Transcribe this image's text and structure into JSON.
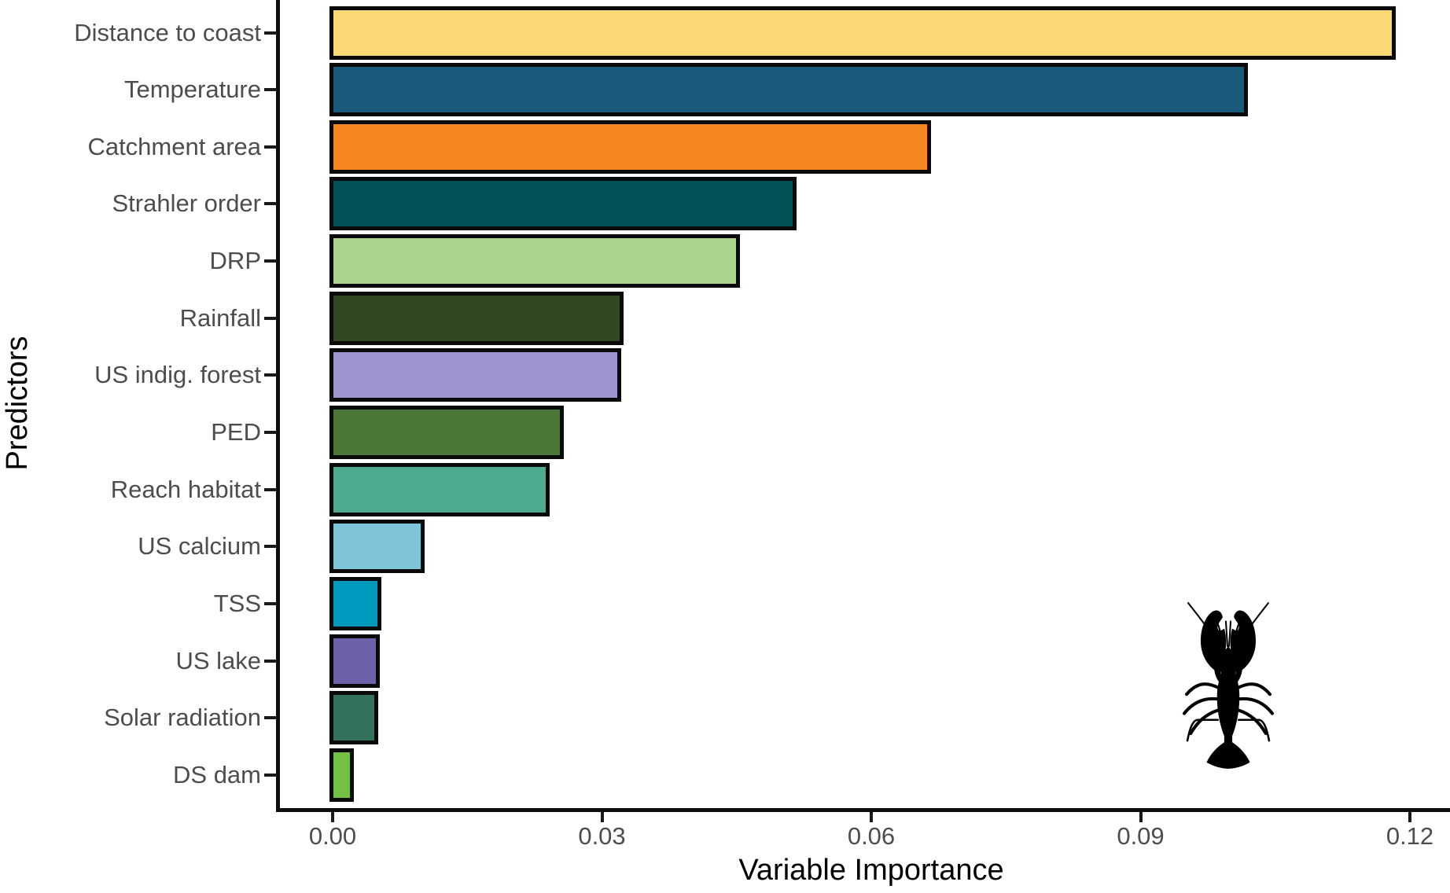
{
  "chart_data": {
    "type": "bar",
    "orientation": "horizontal",
    "title": "",
    "xlabel": "Variable Importance",
    "ylabel": "Predictors",
    "categories": [
      "Distance to coast",
      "Temperature",
      "Catchment area",
      "Strahler order",
      "DRP",
      "Rainfall",
      "US indig. forest",
      "PED",
      "Reach habitat",
      "US calcium",
      "TSS",
      "US lake",
      "Solar radiation",
      "DS dam"
    ],
    "values": [
      0.118,
      0.1015,
      0.0662,
      0.0512,
      0.0449,
      0.032,
      0.0317,
      0.0253,
      0.0237,
      0.0098,
      0.005,
      0.0048,
      0.0046,
      0.0019
    ],
    "bar_colors": [
      "#fad873",
      "#19597a",
      "#f68620",
      "#015157",
      "#abd48e",
      "#304823",
      "#9c95ce",
      "#4b7737",
      "#4daa90",
      "#7fc5d9",
      "#009abf",
      "#6b62aa",
      "#33715b",
      "#74c044"
    ],
    "bar_border_color": "#0a0a0a",
    "x_ticks": [
      0,
      0.03,
      0.06,
      0.09,
      0.12
    ],
    "x_tick_labels": [
      "0.00",
      "0.03",
      "0.06",
      "0.09",
      "0.12"
    ],
    "xlim": [
      0,
      0.1245
    ],
    "grid": "off",
    "legend": "none",
    "background": "#ffffff",
    "axis_line_color": "#0d0d0d",
    "tick_text_color": "#4d4d4d",
    "axis_title_color": "#000000",
    "annotation_icon": "crayfish-silhouette"
  }
}
